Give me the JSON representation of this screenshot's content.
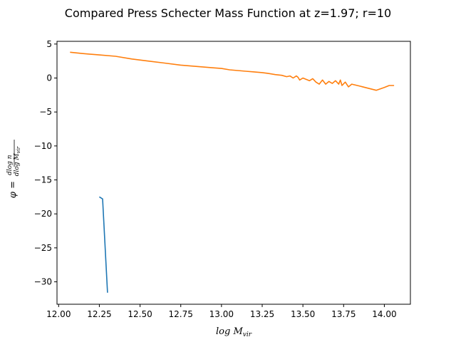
{
  "chart_data": {
    "type": "line",
    "title": "Compared Press Schecter Mass Function at z=1.97; r=10",
    "xlabel": "log M_vir",
    "ylabel": "φ = dlog n / dlog M_vir",
    "xlim": [
      11.99,
      14.16
    ],
    "ylim": [
      -33.3,
      5.4
    ],
    "xticks": [
      12.0,
      12.25,
      12.5,
      12.75,
      13.0,
      13.25,
      13.5,
      13.75,
      14.0
    ],
    "xtick_labels": [
      "12.00",
      "12.25",
      "12.50",
      "12.75",
      "13.00",
      "13.25",
      "13.50",
      "13.75",
      "14.00"
    ],
    "yticks": [
      5,
      0,
      -5,
      -10,
      -15,
      -20,
      -25,
      -30
    ],
    "ytick_labels": [
      "5",
      "0",
      "−5",
      "−10",
      "−15",
      "−20",
      "−25",
      "−30"
    ],
    "grid": false,
    "series": [
      {
        "color": "#1f77b4",
        "x": [
          12.25,
          12.27,
          12.3
        ],
        "y": [
          -17.5,
          -17.8,
          -31.6
        ]
      },
      {
        "color": "#ff7f0e",
        "x": [
          12.07,
          12.15,
          12.25,
          12.35,
          12.45,
          12.55,
          12.65,
          12.75,
          12.85,
          12.95,
          13.0,
          13.05,
          13.1,
          13.15,
          13.2,
          13.25,
          13.28,
          13.33,
          13.37,
          13.4,
          13.42,
          13.44,
          13.46,
          13.47,
          13.48,
          13.5,
          13.52,
          13.54,
          13.56,
          13.58,
          13.6,
          13.62,
          13.64,
          13.66,
          13.68,
          13.7,
          13.72,
          13.73,
          13.74,
          13.76,
          13.78,
          13.8,
          13.85,
          13.9,
          13.95,
          14.0,
          14.03,
          14.06
        ],
        "y": [
          3.8,
          3.6,
          3.4,
          3.2,
          2.8,
          2.5,
          2.2,
          1.9,
          1.7,
          1.5,
          1.4,
          1.2,
          1.1,
          1.0,
          0.9,
          0.8,
          0.7,
          0.5,
          0.4,
          0.2,
          0.3,
          0.0,
          0.3,
          0.1,
          -0.3,
          0.0,
          -0.2,
          -0.4,
          -0.1,
          -0.6,
          -0.9,
          -0.3,
          -0.9,
          -0.5,
          -0.8,
          -0.4,
          -0.9,
          -0.3,
          -1.1,
          -0.6,
          -1.3,
          -0.9,
          -1.2,
          -1.5,
          -1.8,
          -1.4,
          -1.1,
          -1.1
        ]
      }
    ]
  }
}
